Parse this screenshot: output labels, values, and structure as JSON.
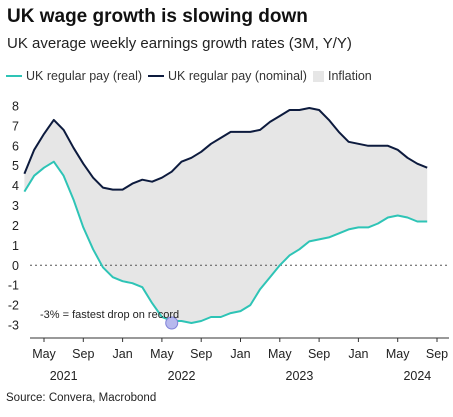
{
  "header": {
    "title": "UK wage growth is slowing down",
    "subtitle": "UK average weekly earnings growth rates (3M, Y/Y)"
  },
  "legend": {
    "real_label": "UK regular pay (real)",
    "nominal_label": "UK regular pay (nominal)",
    "inflation_label": "Inflation"
  },
  "source": "Source: Convera, Macrobond",
  "colors": {
    "real": "#2ec4b6",
    "nominal": "#0d1b3e",
    "inflation_fill": "#e6e6e6",
    "marker": "#b7b9ee"
  },
  "chart_data": {
    "type": "line",
    "title": "UK wage growth is slowing down",
    "subtitle": "UK average weekly earnings growth rates (3M, Y/Y)",
    "xlabel": "",
    "ylabel": "",
    "ylim": [
      -3,
      8
    ],
    "yticks": [
      -3,
      -2,
      -1,
      0,
      1,
      2,
      3,
      4,
      5,
      6,
      7,
      8
    ],
    "xticks": [
      {
        "month": "2021-05",
        "label": "May"
      },
      {
        "month": "2021-09",
        "label": "Sep"
      },
      {
        "month": "2022-01",
        "label": "Jan"
      },
      {
        "month": "2022-05",
        "label": "May"
      },
      {
        "month": "2022-09",
        "label": "Sep"
      },
      {
        "month": "2023-01",
        "label": "Jan"
      },
      {
        "month": "2023-05",
        "label": "May"
      },
      {
        "month": "2023-09",
        "label": "Sep"
      },
      {
        "month": "2024-01",
        "label": "Jan"
      },
      {
        "month": "2024-05",
        "label": "May"
      },
      {
        "month": "2024-09",
        "label": "Sep"
      }
    ],
    "year_labels": [
      {
        "month": "2021-07",
        "label": "2021"
      },
      {
        "month": "2022-07",
        "label": "2022"
      },
      {
        "month": "2023-07",
        "label": "2023"
      },
      {
        "month": "2024-07",
        "label": "2024"
      }
    ],
    "x": [
      "2021-03",
      "2021-04",
      "2021-05",
      "2021-06",
      "2021-07",
      "2021-08",
      "2021-09",
      "2021-10",
      "2021-11",
      "2021-12",
      "2022-01",
      "2022-02",
      "2022-03",
      "2022-04",
      "2022-05",
      "2022-06",
      "2022-07",
      "2022-08",
      "2022-09",
      "2022-10",
      "2022-11",
      "2022-12",
      "2023-01",
      "2023-02",
      "2023-03",
      "2023-04",
      "2023-05",
      "2023-06",
      "2023-07",
      "2023-08",
      "2023-09",
      "2023-10",
      "2023-11",
      "2023-12",
      "2024-01",
      "2024-02",
      "2024-03",
      "2024-04",
      "2024-05",
      "2024-06",
      "2024-07",
      "2024-08"
    ],
    "series": [
      {
        "name": "UK regular pay (nominal)",
        "values": [
          4.6,
          5.8,
          6.6,
          7.3,
          6.8,
          5.9,
          5.1,
          4.4,
          3.9,
          3.8,
          3.8,
          4.1,
          4.3,
          4.2,
          4.4,
          4.7,
          5.2,
          5.4,
          5.7,
          6.1,
          6.4,
          6.7,
          6.7,
          6.7,
          6.8,
          7.2,
          7.5,
          7.8,
          7.8,
          7.9,
          7.8,
          7.3,
          6.7,
          6.2,
          6.1,
          6.0,
          6.0,
          6.0,
          5.8,
          5.4,
          5.1,
          4.9
        ]
      },
      {
        "name": "UK regular pay (real)",
        "values": [
          3.7,
          4.5,
          4.9,
          5.2,
          4.5,
          3.3,
          1.9,
          0.8,
          -0.1,
          -0.6,
          -0.8,
          -0.9,
          -1.1,
          -1.9,
          -2.6,
          -2.8,
          -2.8,
          -2.9,
          -2.8,
          -2.6,
          -2.6,
          -2.4,
          -2.3,
          -2.0,
          -1.2,
          -0.6,
          0.0,
          0.5,
          0.8,
          1.2,
          1.3,
          1.4,
          1.6,
          1.8,
          1.9,
          1.9,
          2.1,
          2.4,
          2.5,
          2.4,
          2.2,
          2.2
        ]
      }
    ],
    "inflation_area": "shaded between nominal and real",
    "reference_line": {
      "y": 0,
      "style": "dotted"
    },
    "annotation": {
      "text": "-3% = fastest drop on record",
      "month": "2022-06",
      "y": -2.9
    },
    "legend_position": "top",
    "grid": false
  }
}
